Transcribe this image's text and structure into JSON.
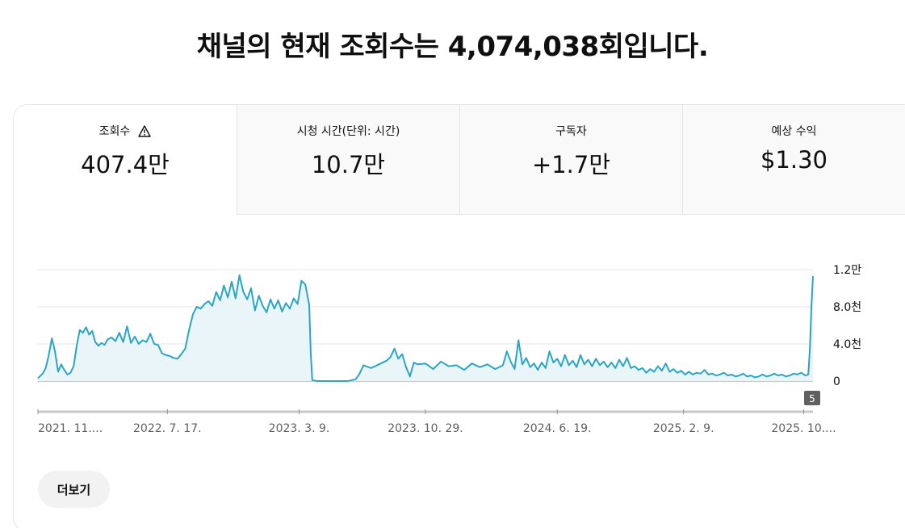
{
  "headline": "채널의 현재 조회수는 4,074,038회입니다.",
  "tabs": [
    {
      "label": "조회수",
      "value": "407.4만",
      "icon": "warning-icon"
    },
    {
      "label": "시청 시간(단위: 시간)",
      "value": "10.7만"
    },
    {
      "label": "구독자",
      "value": "+1.7만"
    },
    {
      "label": "예상 수익",
      "value": "$1.30"
    }
  ],
  "chart_data": {
    "type": "area",
    "series_name": "조회수",
    "y_ticks": [
      {
        "value": 0,
        "label": "0"
      },
      {
        "value": 4000,
        "label": "4.0천"
      },
      {
        "value": 8000,
        "label": "8.0천"
      },
      {
        "value": 12000,
        "label": "1.2만"
      }
    ],
    "ylim": [
      0,
      12000
    ],
    "x_ticks": [
      "2021. 11....",
      "2022. 7. 17.",
      "2023. 3. 9.",
      "2023. 10. 29.",
      "2024. 6. 19.",
      "2025. 2. 9.",
      "2025. 10...."
    ],
    "marker_label": "5",
    "color": "#2ba5c5",
    "fill": "#eaf5fa",
    "points": [
      [
        0,
        300
      ],
      [
        0.006,
        800
      ],
      [
        0.01,
        1400
      ],
      [
        0.014,
        2800
      ],
      [
        0.018,
        4600
      ],
      [
        0.022,
        3200
      ],
      [
        0.026,
        1000
      ],
      [
        0.03,
        1800
      ],
      [
        0.034,
        1200
      ],
      [
        0.038,
        700
      ],
      [
        0.042,
        900
      ],
      [
        0.046,
        1600
      ],
      [
        0.05,
        3800
      ],
      [
        0.054,
        5500
      ],
      [
        0.058,
        5200
      ],
      [
        0.062,
        5800
      ],
      [
        0.066,
        5000
      ],
      [
        0.07,
        5400
      ],
      [
        0.074,
        4200
      ],
      [
        0.078,
        3800
      ],
      [
        0.082,
        4100
      ],
      [
        0.086,
        3900
      ],
      [
        0.09,
        4500
      ],
      [
        0.095,
        4700
      ],
      [
        0.1,
        4300
      ],
      [
        0.105,
        5200
      ],
      [
        0.11,
        4200
      ],
      [
        0.115,
        5900
      ],
      [
        0.12,
        4100
      ],
      [
        0.125,
        4800
      ],
      [
        0.13,
        4000
      ],
      [
        0.135,
        4400
      ],
      [
        0.14,
        4200
      ],
      [
        0.145,
        5100
      ],
      [
        0.15,
        4000
      ],
      [
        0.155,
        3900
      ],
      [
        0.16,
        3000
      ],
      [
        0.165,
        2800
      ],
      [
        0.17,
        2700
      ],
      [
        0.175,
        2500
      ],
      [
        0.18,
        2400
      ],
      [
        0.185,
        2900
      ],
      [
        0.19,
        3500
      ],
      [
        0.195,
        5500
      ],
      [
        0.2,
        7200
      ],
      [
        0.205,
        8000
      ],
      [
        0.21,
        7800
      ],
      [
        0.215,
        8300
      ],
      [
        0.22,
        8600
      ],
      [
        0.225,
        8100
      ],
      [
        0.23,
        9600
      ],
      [
        0.235,
        8700
      ],
      [
        0.24,
        10300
      ],
      [
        0.245,
        9000
      ],
      [
        0.25,
        10700
      ],
      [
        0.255,
        8900
      ],
      [
        0.26,
        11400
      ],
      [
        0.265,
        9600
      ],
      [
        0.27,
        8800
      ],
      [
        0.275,
        10000
      ],
      [
        0.28,
        7600
      ],
      [
        0.285,
        9200
      ],
      [
        0.29,
        8100
      ],
      [
        0.295,
        7400
      ],
      [
        0.3,
        8800
      ],
      [
        0.305,
        7800
      ],
      [
        0.31,
        8700
      ],
      [
        0.315,
        7500
      ],
      [
        0.32,
        8400
      ],
      [
        0.325,
        7800
      ],
      [
        0.33,
        8900
      ],
      [
        0.335,
        8300
      ],
      [
        0.34,
        10800
      ],
      [
        0.345,
        10400
      ],
      [
        0.35,
        8200
      ],
      [
        0.352,
        3000
      ],
      [
        0.354,
        100
      ],
      [
        0.36,
        0
      ],
      [
        0.37,
        0
      ],
      [
        0.38,
        0
      ],
      [
        0.39,
        0
      ],
      [
        0.4,
        0
      ],
      [
        0.41,
        200
      ],
      [
        0.415,
        800
      ],
      [
        0.42,
        1700
      ],
      [
        0.43,
        1400
      ],
      [
        0.44,
        1800
      ],
      [
        0.45,
        2200
      ],
      [
        0.455,
        2600
      ],
      [
        0.46,
        3500
      ],
      [
        0.465,
        2400
      ],
      [
        0.47,
        2900
      ],
      [
        0.475,
        1500
      ],
      [
        0.48,
        500
      ],
      [
        0.485,
        2000
      ],
      [
        0.49,
        1800
      ],
      [
        0.5,
        1900
      ],
      [
        0.51,
        1300
      ],
      [
        0.52,
        2100
      ],
      [
        0.53,
        1600
      ],
      [
        0.54,
        1700
      ],
      [
        0.55,
        1200
      ],
      [
        0.56,
        1900
      ],
      [
        0.57,
        1500
      ],
      [
        0.58,
        1800
      ],
      [
        0.59,
        1300
      ],
      [
        0.6,
        1700
      ],
      [
        0.605,
        3200
      ],
      [
        0.61,
        2100
      ],
      [
        0.615,
        1300
      ],
      [
        0.62,
        4400
      ],
      [
        0.625,
        1800
      ],
      [
        0.63,
        2500
      ],
      [
        0.635,
        1500
      ],
      [
        0.64,
        1900
      ],
      [
        0.645,
        1200
      ],
      [
        0.65,
        2000
      ],
      [
        0.655,
        1400
      ],
      [
        0.66,
        3200
      ],
      [
        0.665,
        2000
      ],
      [
        0.67,
        2400
      ],
      [
        0.675,
        1600
      ],
      [
        0.68,
        2800
      ],
      [
        0.685,
        1700
      ],
      [
        0.69,
        2200
      ],
      [
        0.695,
        1500
      ],
      [
        0.7,
        2800
      ],
      [
        0.705,
        1800
      ],
      [
        0.71,
        2300
      ],
      [
        0.715,
        1600
      ],
      [
        0.72,
        2400
      ],
      [
        0.725,
        1700
      ],
      [
        0.73,
        2100
      ],
      [
        0.735,
        1500
      ],
      [
        0.74,
        2000
      ],
      [
        0.745,
        1400
      ],
      [
        0.75,
        2300
      ],
      [
        0.755,
        1600
      ],
      [
        0.76,
        2500
      ],
      [
        0.765,
        1400
      ],
      [
        0.77,
        1600
      ],
      [
        0.775,
        1200
      ],
      [
        0.78,
        1400
      ],
      [
        0.785,
        900
      ],
      [
        0.79,
        1300
      ],
      [
        0.795,
        1000
      ],
      [
        0.8,
        1600
      ],
      [
        0.805,
        1100
      ],
      [
        0.81,
        1900
      ],
      [
        0.815,
        1000
      ],
      [
        0.82,
        1300
      ],
      [
        0.825,
        900
      ],
      [
        0.83,
        1100
      ],
      [
        0.835,
        700
      ],
      [
        0.84,
        1000
      ],
      [
        0.845,
        700
      ],
      [
        0.85,
        900
      ],
      [
        0.855,
        800
      ],
      [
        0.86,
        1200
      ],
      [
        0.865,
        700
      ],
      [
        0.87,
        800
      ],
      [
        0.875,
        600
      ],
      [
        0.88,
        700
      ],
      [
        0.885,
        900
      ],
      [
        0.89,
        600
      ],
      [
        0.895,
        700
      ],
      [
        0.9,
        500
      ],
      [
        0.905,
        600
      ],
      [
        0.91,
        800
      ],
      [
        0.915,
        500
      ],
      [
        0.92,
        600
      ],
      [
        0.925,
        400
      ],
      [
        0.93,
        500
      ],
      [
        0.935,
        700
      ],
      [
        0.94,
        500
      ],
      [
        0.945,
        600
      ],
      [
        0.95,
        800
      ],
      [
        0.955,
        600
      ],
      [
        0.96,
        700
      ],
      [
        0.965,
        500
      ],
      [
        0.97,
        600
      ],
      [
        0.975,
        800
      ],
      [
        0.98,
        700
      ],
      [
        0.985,
        900
      ],
      [
        0.99,
        600
      ],
      [
        0.994,
        700
      ],
      [
        0.996,
        3500
      ],
      [
        0.998,
        8000
      ],
      [
        1,
        11300
      ]
    ]
  },
  "more_button": "더보기"
}
